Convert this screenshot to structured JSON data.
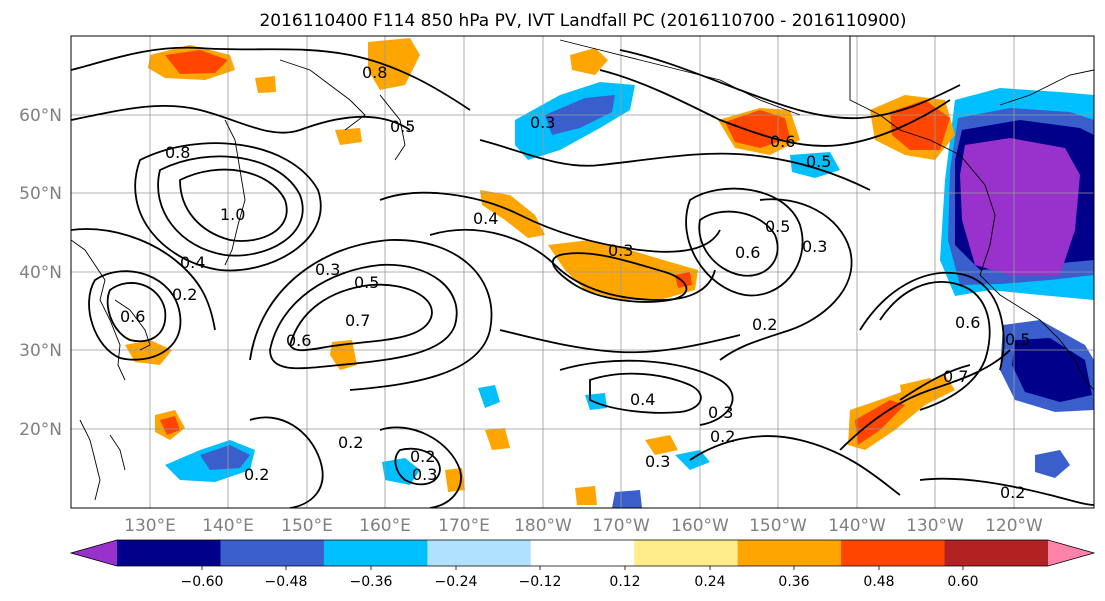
{
  "title": "2016110400 F114 850 hPa PV, IVT Landfall PC (2016110700 - 2016110900)",
  "map": {
    "lat_labels": [
      "60°N",
      "50°N",
      "40°N",
      "30°N",
      "20°N"
    ],
    "lon_labels": [
      "130°E",
      "140°E",
      "150°E",
      "160°E",
      "170°E",
      "180°W",
      "170°W",
      "160°W",
      "150°W",
      "140°W",
      "130°W",
      "120°W"
    ],
    "contour_labels": [
      "0.3",
      "0.3",
      "0.2",
      "0.2",
      "0.4",
      "0.4",
      "0.5",
      "0.7",
      "0.6",
      "0.6",
      "0.6",
      "0.5",
      "0.7",
      "0.2",
      "0.8",
      "1.0",
      "0.6",
      "0.5",
      "0.6",
      "0.3",
      "0.3",
      "0.2",
      "0.8",
      "0.5",
      "0.3",
      "0.2",
      "0.2",
      "0.3",
      "0.3",
      "0.4",
      "0.2",
      "0.5"
    ],
    "colors": {
      "land_line": "#000000",
      "grid": "#999999",
      "contour": "#000000"
    }
  },
  "colorbar": {
    "tick_labels": [
      "−0.60",
      "−0.48",
      "−0.36",
      "−0.24",
      "−0.12",
      "0.12",
      "0.24",
      "0.36",
      "0.48",
      "0.60"
    ],
    "colors": [
      "#9932CC",
      "#00008B",
      "#3A5FCD",
      "#00BFFF",
      "#B0E2FF",
      "#FFFFFF",
      "#FFEC8B",
      "#FFA500",
      "#FF4500",
      "#B22222",
      "#FF82AB"
    ]
  }
}
